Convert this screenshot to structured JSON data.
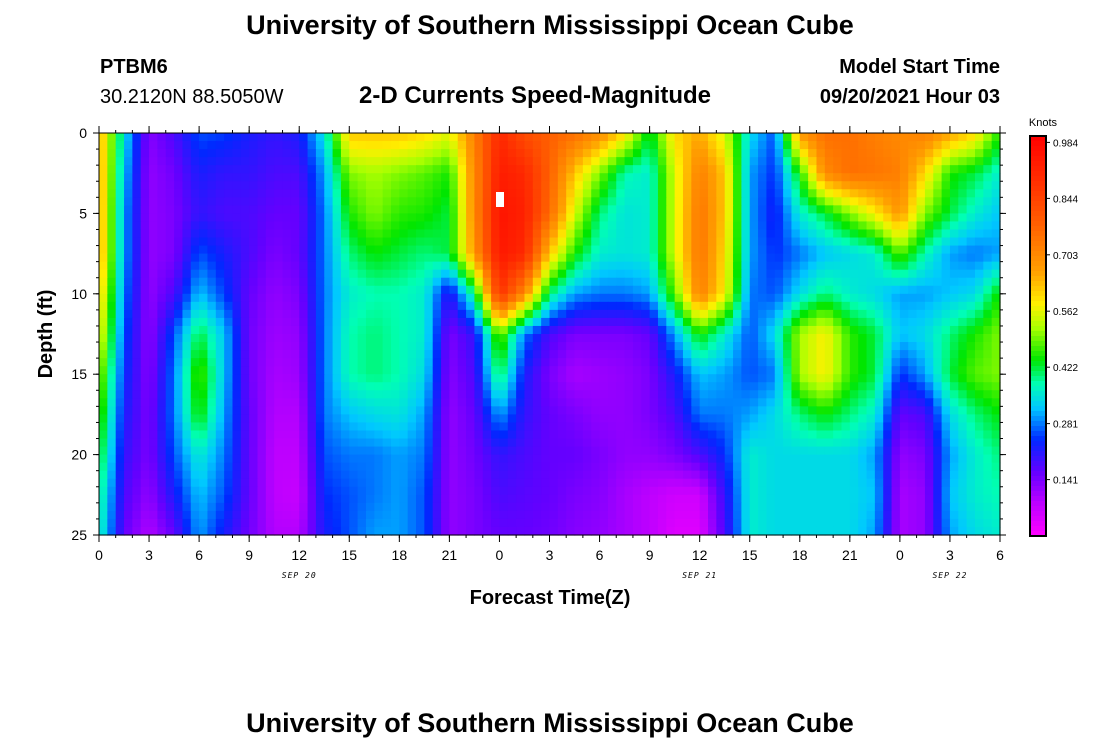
{
  "header": {
    "title": "University of Southern Mississippi Ocean Cube",
    "station": "PTBM6",
    "coords": "30.2120N  88.5050W",
    "subtitle": "2-D Currents Speed-Magnitude",
    "model_start_label": "Model Start Time",
    "model_start_value": "09/20/2021 Hour 03"
  },
  "footer": {
    "title": "University of Southern Mississippi Ocean Cube"
  },
  "chart_data": {
    "type": "heatmap",
    "xlabel": "Forecast Time(Z)",
    "ylabel": "Depth (ft)",
    "xlim": [
      0,
      54
    ],
    "ylim": [
      0,
      25
    ],
    "y_ticks": [
      0,
      5,
      10,
      15,
      20,
      25
    ],
    "x_tick_labels": [
      "0",
      "3",
      "6",
      "9",
      "12",
      "15",
      "18",
      "21",
      "0",
      "3",
      "6",
      "9",
      "12",
      "15",
      "18",
      "21",
      "0",
      "3",
      "6"
    ],
    "x_tick_values": [
      0,
      3,
      6,
      9,
      12,
      15,
      18,
      21,
      24,
      27,
      30,
      33,
      36,
      39,
      42,
      45,
      48,
      51,
      54
    ],
    "date_labels": [
      {
        "text": "SEP 20",
        "x": 12
      },
      {
        "text": "SEP 21",
        "x": 36
      },
      {
        "text": "SEP 22",
        "x": 51
      }
    ],
    "colorbar": {
      "title": "Knots",
      "ticks": [
        "0.984",
        "0.844",
        "0.703",
        "0.562",
        "0.422",
        "0.281",
        "0.141"
      ],
      "tick_values": [
        0.984,
        0.844,
        0.703,
        0.562,
        0.422,
        0.281,
        0.141
      ],
      "range": [
        0,
        1.0
      ]
    },
    "time_hours": [
      0,
      1.5,
      3,
      4.5,
      6,
      7.5,
      9,
      10.5,
      12,
      13.5,
      15,
      16.5,
      18,
      19.5,
      21,
      22.5,
      24,
      25.5,
      27,
      28.5,
      30,
      31.5,
      33,
      34.5,
      36,
      37.5,
      39,
      40.5,
      42,
      43.5,
      45,
      46.5,
      48,
      49.5,
      51,
      52.5,
      54
    ],
    "depth_ft": [
      0,
      2.5,
      5,
      7.5,
      10,
      12.5,
      15,
      17.5,
      20,
      22.5,
      25
    ],
    "values": [
      [
        0.65,
        0.35,
        0.13,
        0.18,
        0.26,
        0.25,
        0.22,
        0.2,
        0.22,
        0.35,
        0.62,
        0.62,
        0.62,
        0.6,
        0.56,
        0.72,
        0.9,
        0.82,
        0.78,
        0.75,
        0.7,
        0.6,
        0.42,
        0.6,
        0.65,
        0.55,
        0.34,
        0.26,
        0.68,
        0.75,
        0.75,
        0.72,
        0.7,
        0.72,
        0.66,
        0.6,
        0.45
      ],
      [
        0.66,
        0.32,
        0.12,
        0.15,
        0.22,
        0.2,
        0.2,
        0.18,
        0.18,
        0.3,
        0.5,
        0.52,
        0.5,
        0.48,
        0.45,
        0.7,
        0.93,
        0.9,
        0.78,
        0.62,
        0.5,
        0.38,
        0.36,
        0.55,
        0.72,
        0.62,
        0.3,
        0.24,
        0.45,
        0.7,
        0.75,
        0.74,
        0.72,
        0.6,
        0.45,
        0.42,
        0.36
      ],
      [
        0.66,
        0.3,
        0.12,
        0.14,
        0.2,
        0.18,
        0.18,
        0.16,
        0.16,
        0.28,
        0.45,
        0.5,
        0.46,
        0.45,
        0.42,
        0.7,
        0.95,
        0.92,
        0.76,
        0.55,
        0.4,
        0.35,
        0.36,
        0.55,
        0.74,
        0.62,
        0.3,
        0.22,
        0.36,
        0.42,
        0.5,
        0.58,
        0.68,
        0.5,
        0.42,
        0.36,
        0.32
      ],
      [
        0.66,
        0.3,
        0.12,
        0.14,
        0.26,
        0.22,
        0.18,
        0.14,
        0.16,
        0.28,
        0.4,
        0.44,
        0.42,
        0.4,
        0.42,
        0.68,
        0.94,
        0.9,
        0.62,
        0.45,
        0.36,
        0.35,
        0.36,
        0.55,
        0.74,
        0.6,
        0.3,
        0.24,
        0.28,
        0.32,
        0.34,
        0.36,
        0.48,
        0.38,
        0.3,
        0.28,
        0.3
      ],
      [
        0.62,
        0.28,
        0.12,
        0.18,
        0.32,
        0.25,
        0.16,
        0.12,
        0.14,
        0.28,
        0.36,
        0.38,
        0.38,
        0.36,
        0.2,
        0.4,
        0.88,
        0.7,
        0.4,
        0.3,
        0.28,
        0.28,
        0.3,
        0.48,
        0.72,
        0.58,
        0.28,
        0.26,
        0.34,
        0.4,
        0.36,
        0.34,
        0.3,
        0.3,
        0.32,
        0.34,
        0.45
      ],
      [
        0.58,
        0.26,
        0.12,
        0.26,
        0.42,
        0.32,
        0.15,
        0.11,
        0.12,
        0.28,
        0.38,
        0.4,
        0.38,
        0.36,
        0.14,
        0.2,
        0.5,
        0.28,
        0.18,
        0.14,
        0.14,
        0.14,
        0.16,
        0.3,
        0.45,
        0.36,
        0.26,
        0.34,
        0.52,
        0.58,
        0.46,
        0.42,
        0.32,
        0.34,
        0.4,
        0.45,
        0.5
      ],
      [
        0.52,
        0.24,
        0.13,
        0.28,
        0.48,
        0.32,
        0.15,
        0.1,
        0.11,
        0.28,
        0.38,
        0.4,
        0.38,
        0.34,
        0.13,
        0.18,
        0.42,
        0.22,
        0.14,
        0.1,
        0.11,
        0.12,
        0.14,
        0.22,
        0.32,
        0.3,
        0.26,
        0.28,
        0.52,
        0.58,
        0.46,
        0.42,
        0.24,
        0.3,
        0.42,
        0.48,
        0.5
      ],
      [
        0.48,
        0.22,
        0.14,
        0.28,
        0.45,
        0.3,
        0.16,
        0.09,
        0.09,
        0.28,
        0.32,
        0.34,
        0.35,
        0.3,
        0.12,
        0.16,
        0.3,
        0.2,
        0.16,
        0.14,
        0.12,
        0.12,
        0.14,
        0.18,
        0.28,
        0.28,
        0.3,
        0.34,
        0.4,
        0.44,
        0.4,
        0.36,
        0.16,
        0.18,
        0.34,
        0.4,
        0.44
      ],
      [
        0.44,
        0.2,
        0.14,
        0.26,
        0.36,
        0.28,
        0.16,
        0.08,
        0.08,
        0.26,
        0.28,
        0.28,
        0.3,
        0.28,
        0.12,
        0.15,
        0.2,
        0.18,
        0.16,
        0.16,
        0.14,
        0.12,
        0.12,
        0.14,
        0.18,
        0.24,
        0.36,
        0.34,
        0.34,
        0.34,
        0.34,
        0.3,
        0.12,
        0.14,
        0.3,
        0.36,
        0.4
      ],
      [
        0.4,
        0.18,
        0.12,
        0.22,
        0.32,
        0.26,
        0.16,
        0.08,
        0.07,
        0.24,
        0.26,
        0.28,
        0.3,
        0.26,
        0.12,
        0.14,
        0.18,
        0.17,
        0.16,
        0.14,
        0.13,
        0.1,
        0.08,
        0.06,
        0.06,
        0.2,
        0.36,
        0.34,
        0.34,
        0.34,
        0.34,
        0.32,
        0.1,
        0.12,
        0.32,
        0.36,
        0.38
      ],
      [
        0.38,
        0.16,
        0.09,
        0.16,
        0.3,
        0.22,
        0.15,
        0.09,
        0.09,
        0.22,
        0.26,
        0.3,
        0.3,
        0.26,
        0.12,
        0.14,
        0.16,
        0.16,
        0.15,
        0.13,
        0.12,
        0.1,
        0.08,
        0.04,
        0.04,
        0.18,
        0.36,
        0.34,
        0.34,
        0.34,
        0.34,
        0.3,
        0.1,
        0.12,
        0.3,
        0.34,
        0.36
      ]
    ]
  }
}
